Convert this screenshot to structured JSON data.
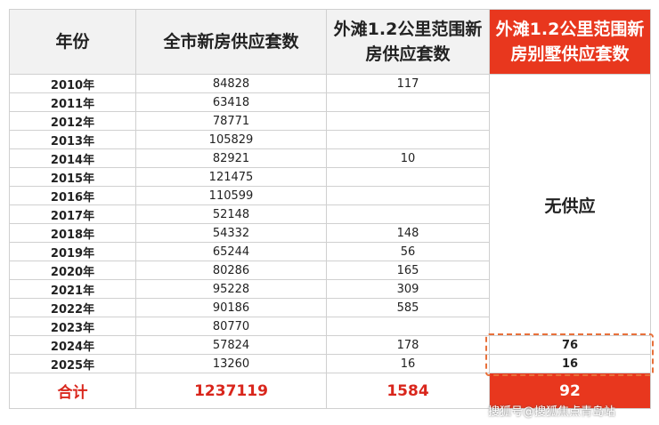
{
  "table": {
    "header": [
      "年份",
      "全市新房供应套数",
      "外滩1.2公里范围新房供应套数",
      "外滩1.2公里范围新房别墅供应套数"
    ],
    "rows": [
      [
        "2010年",
        84828,
        117
      ],
      [
        "2011年",
        63418,
        null
      ],
      [
        "2012年",
        78771,
        null
      ],
      [
        "2013年",
        105829,
        null
      ],
      [
        "2014年",
        82921,
        10
      ],
      [
        "2015年",
        121475,
        null
      ],
      [
        "2016年",
        110599,
        null
      ],
      [
        "2017年",
        52148,
        null
      ],
      [
        "2018年",
        54332,
        148
      ],
      [
        "2019年",
        65244,
        56
      ],
      [
        "2020年",
        80286,
        165
      ],
      [
        "2021年",
        95228,
        309
      ],
      [
        "2022年",
        90186,
        585
      ],
      [
        "2023年",
        80770,
        null
      ],
      [
        "2024年",
        57824,
        178,
        76
      ],
      [
        "2025年",
        13260,
        16,
        16
      ]
    ],
    "no_supply": "无供应",
    "total": [
      "合计",
      1237119,
      1584,
      92
    ]
  },
  "watermark": "搜狐号@搜狐焦点青岛站"
}
